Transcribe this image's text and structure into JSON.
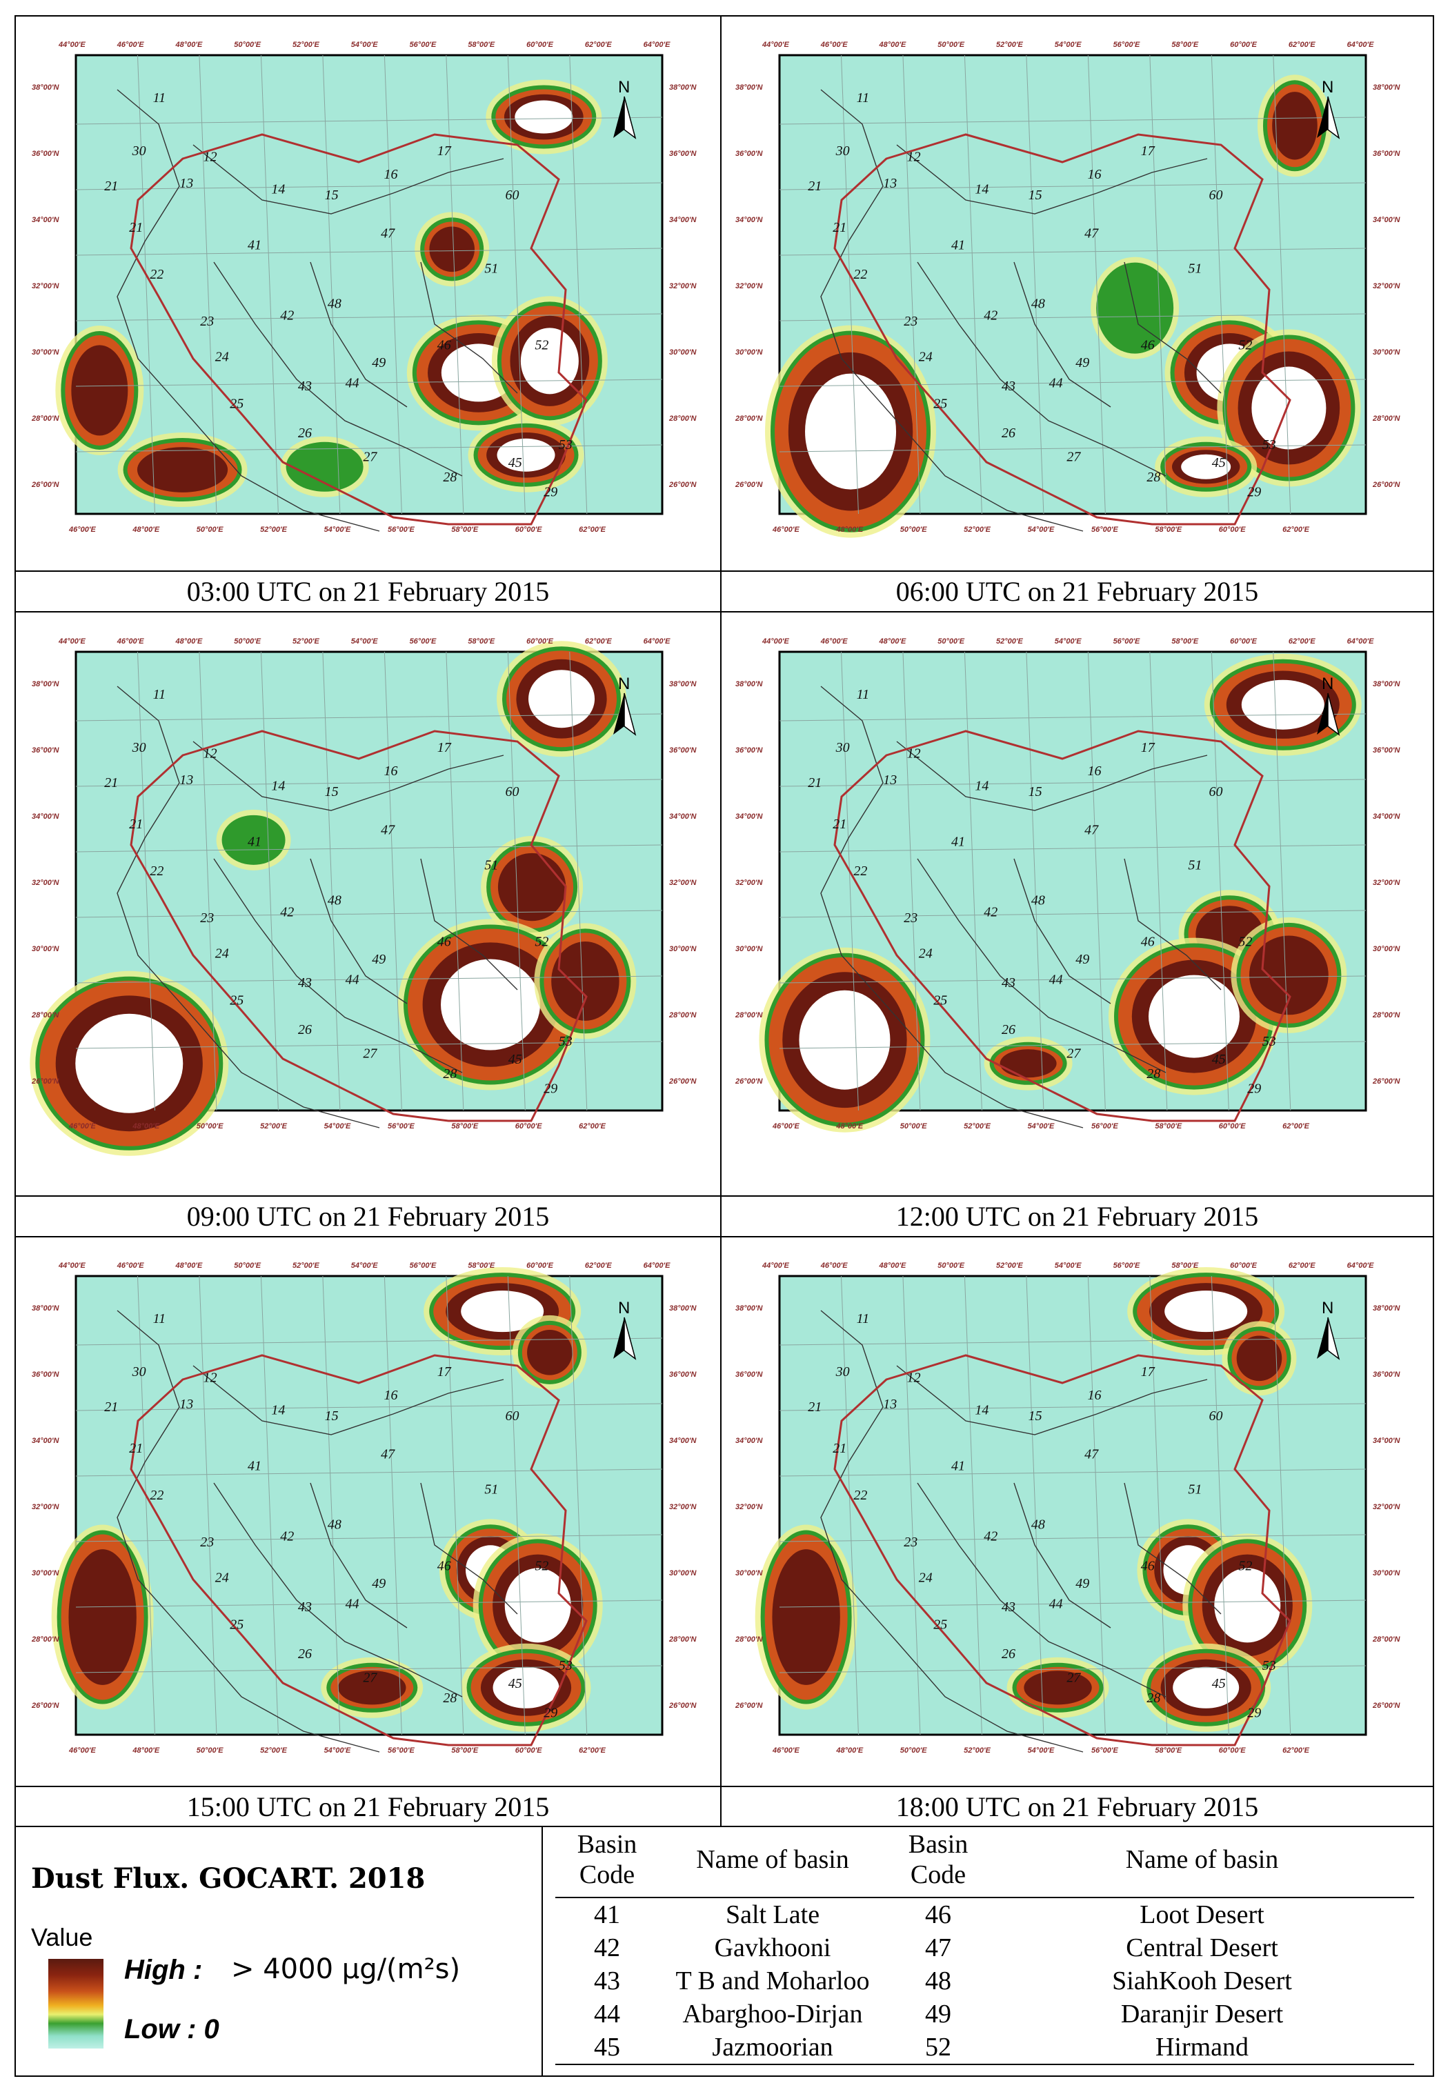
{
  "panels": [
    {
      "caption": "03:00 UTC on 21 February 2015"
    },
    {
      "caption": "06:00 UTC on 21 February 2015"
    },
    {
      "caption": "09:00 UTC on 21 February 2015"
    },
    {
      "caption": "12:00 UTC on 21 February 2015"
    },
    {
      "caption": "15:00 UTC on 21 February 2015"
    },
    {
      "caption": "18:00 UTC on 21 February 2015"
    }
  ],
  "map": {
    "north_label": "N",
    "top_lon_labels": [
      "44°00'E",
      "46°00'E",
      "48°00'E",
      "50°00'E",
      "52°00'E",
      "54°00'E",
      "56°00'E",
      "58°00'E",
      "60°00'E",
      "62°00'E",
      "64°00'E"
    ],
    "bottom_lon_labels": [
      "46°00'E",
      "48°00'E",
      "50°00'E",
      "52°00'E",
      "54°00'E",
      "56°00'E",
      "58°00'E",
      "60°00'E",
      "62°00'E"
    ],
    "lat_labels": [
      "38°00'N",
      "36°00'N",
      "34°00'N",
      "32°00'N",
      "30°00'N",
      "28°00'N",
      "26°00'N"
    ],
    "basin_numbers": [
      "11",
      "30",
      "12",
      "13",
      "21",
      "14",
      "15",
      "16",
      "17",
      "60",
      "21",
      "41",
      "47",
      "22",
      "51",
      "42",
      "48",
      "23",
      "46",
      "52",
      "24",
      "49",
      "43",
      "44",
      "25",
      "26",
      "27",
      "53",
      "28",
      "45",
      "29"
    ],
    "colors": {
      "background": "#a8e8d8",
      "border_red": "#b03030",
      "basin_line": "#333333",
      "dust_high": "#6a1a10",
      "dust_mid": "#d0541c",
      "dust_green": "#2f9a2c",
      "dust_yellow": "#eef08a",
      "saturated": "#ffffff"
    }
  },
  "legend": {
    "title": "Dust Flux. GOCART. 2018",
    "value_label": "Value",
    "high_label": "High :",
    "high_value": "> 4000 μg/(m²s)",
    "low_label": "Low : 0"
  },
  "basin_table": {
    "headers": [
      "Basin Code",
      "Name of basin",
      "Basin Code",
      "Name of basin"
    ],
    "rows": [
      [
        "41",
        "Salt Late",
        "46",
        "Loot Desert"
      ],
      [
        "42",
        "Gavkhooni",
        "47",
        "Central Desert"
      ],
      [
        "43",
        "T B and Moharloo",
        "48",
        "SiahKooh Desert"
      ],
      [
        "44",
        "Abarghoo-Dirjan",
        "49",
        "Daranjir Desert"
      ],
      [
        "45",
        "Jazmoorian",
        "52",
        "Hirmand"
      ]
    ]
  }
}
